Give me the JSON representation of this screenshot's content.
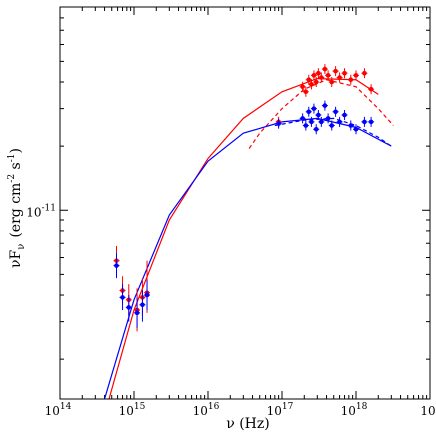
{
  "chart_data": {
    "type": "scatter",
    "xscale": "log",
    "yscale": "log",
    "xlim": [
      100000000000000.0,
      1e+19
    ],
    "ylim": [
      1.3e-12,
      9e-11
    ],
    "x_ticks": [
      {
        "value": 100000000000000.0,
        "label": "10",
        "exp": "14"
      },
      {
        "value": 1000000000000000.0,
        "label": "10",
        "exp": "15"
      },
      {
        "value": 1e+16,
        "label": "10",
        "exp": "16"
      },
      {
        "value": 1e+17,
        "label": "10",
        "exp": "17"
      },
      {
        "value": 1e+18,
        "label": "10",
        "exp": "18"
      },
      {
        "value": 1e+19,
        "label": "10",
        "exp": ""
      }
    ],
    "y_ticks": [
      {
        "value": 1e-11,
        "label": "10",
        "exp": "-11"
      }
    ],
    "xlabel": "ν  (Hz)",
    "ylabel_main": "νF",
    "ylabel_sub": "ν",
    "ylabel_units": "(erg cm",
    "ylabel_units_exp1": "-2",
    "ylabel_units_mid": " s",
    "ylabel_units_exp2": "-1",
    "ylabel_units_end": ")",
    "grid": false,
    "series": [
      {
        "color": "#ff0000",
        "points": [
          {
            "x": 580000000000000.0,
            "y": 5.8e-12,
            "yerr": [
              4.9e-12,
              6.8e-12
            ]
          },
          {
            "x": 700000000000000.0,
            "y": 4.2e-12,
            "yerr": [
              3.6e-12,
              4.9e-12
            ]
          },
          {
            "x": 850000000000000.0,
            "y": 3.8e-12,
            "yerr": [
              3.2e-12,
              4.5e-12
            ]
          },
          {
            "x": 1100000000000000.0,
            "y": 3.4e-12,
            "yerr": [
              2.7e-12,
              4.3e-12
            ]
          },
          {
            "x": 1300000000000000.0,
            "y": 3.9e-12,
            "yerr": [
              3.2e-12,
              4.8e-12
            ]
          },
          {
            "x": 1500000000000000.0,
            "y": 4.1e-12,
            "yerr": [
              3.3e-12,
              5.8e-12
            ]
          },
          {
            "x": 9e+16,
            "y": 2.6e-11
          },
          {
            "x": 1.9e+17,
            "y": 3.8e-11
          },
          {
            "x": 2.1e+17,
            "y": 3.6e-11
          },
          {
            "x": 2.3e+17,
            "y": 4.1e-11
          },
          {
            "x": 2.5e+17,
            "y": 3.9e-11
          },
          {
            "x": 2.7e+17,
            "y": 4.3e-11
          },
          {
            "x": 2.9e+17,
            "y": 4e-11
          },
          {
            "x": 3.1e+17,
            "y": 4.4e-11
          },
          {
            "x": 3.4e+17,
            "y": 4.2e-11
          },
          {
            "x": 3.8e+17,
            "y": 4.6e-11
          },
          {
            "x": 4.2e+17,
            "y": 4.3e-11
          },
          {
            "x": 4.7e+17,
            "y": 4e-11
          },
          {
            "x": 5.3e+17,
            "y": 4.5e-11
          },
          {
            "x": 6e+17,
            "y": 4.2e-11
          },
          {
            "x": 7e+17,
            "y": 4.4e-11
          },
          {
            "x": 8.5e+17,
            "y": 4.1e-11
          },
          {
            "x": 1e+18,
            "y": 4.3e-11
          },
          {
            "x": 1.3e+18,
            "y": 4.4e-11
          },
          {
            "x": 1.6e+18,
            "y": 3.7e-11
          }
        ],
        "model_solid": [
          [
            460000000000000.0,
            1.3e-12
          ],
          [
            1000000000000000.0,
            3.4e-12
          ],
          [
            3000000000000000.0,
            9e-12
          ],
          [
            1e+16,
            1.75e-11
          ],
          [
            3e+16,
            2.7e-11
          ],
          [
            1e+17,
            3.6e-11
          ],
          [
            3e+17,
            4.15e-11
          ],
          [
            1e+18,
            4.1e-11
          ],
          [
            2e+18,
            3.5e-11
          ]
        ],
        "model_dashed": [
          [
            3.6e+16,
            1.95e-11
          ],
          [
            5e+16,
            2.3e-11
          ],
          [
            1e+17,
            3e-11
          ],
          [
            2e+17,
            3.7e-11
          ],
          [
            4e+17,
            4.1e-11
          ],
          [
            1e+18,
            3.8e-11
          ],
          [
            2e+18,
            3e-11
          ],
          [
            3.2e+18,
            2.5e-11
          ]
        ]
      },
      {
        "color": "#0000ff",
        "points": [
          {
            "x": 580000000000000.0,
            "y": 5.5e-12,
            "yerr": [
              4.8e-12,
              6.3e-12
            ]
          },
          {
            "x": 700000000000000.0,
            "y": 3.9e-12,
            "yerr": [
              3.4e-12,
              4.5e-12
            ]
          },
          {
            "x": 850000000000000.0,
            "y": 3.5e-12,
            "yerr": [
              3e-12,
              4e-12
            ]
          },
          {
            "x": 1100000000000000.0,
            "y": 3.3e-12,
            "yerr": [
              2.8e-12,
              3.9e-12
            ]
          },
          {
            "x": 1300000000000000.0,
            "y": 3.6e-12,
            "yerr": [
              3e-12,
              4.2e-12
            ]
          },
          {
            "x": 1500000000000000.0,
            "y": 4e-12,
            "yerr": [
              3.4e-12,
              4.7e-12
            ]
          },
          {
            "x": 9e+16,
            "y": 2.55e-11
          },
          {
            "x": 1.9e+17,
            "y": 2.7e-11
          },
          {
            "x": 2.1e+17,
            "y": 2.5e-11
          },
          {
            "x": 2.3e+17,
            "y": 2.9e-11
          },
          {
            "x": 2.5e+17,
            "y": 2.6e-11
          },
          {
            "x": 2.7e+17,
            "y": 3e-11
          },
          {
            "x": 2.9e+17,
            "y": 2.4e-11
          },
          {
            "x": 3.1e+17,
            "y": 2.8e-11
          },
          {
            "x": 3.4e+17,
            "y": 2.6e-11
          },
          {
            "x": 3.8e+17,
            "y": 3.1e-11
          },
          {
            "x": 4.2e+17,
            "y": 2.7e-11
          },
          {
            "x": 4.7e+17,
            "y": 2.5e-11
          },
          {
            "x": 5.3e+17,
            "y": 2.9e-11
          },
          {
            "x": 6e+17,
            "y": 2.6e-11
          },
          {
            "x": 7e+17,
            "y": 2.8e-11
          },
          {
            "x": 8.5e+17,
            "y": 2.5e-11
          },
          {
            "x": 1e+18,
            "y": 2.4e-11
          },
          {
            "x": 1.3e+18,
            "y": 2.6e-11
          },
          {
            "x": 1.6e+18,
            "y": 2.6e-11
          }
        ],
        "model_solid": [
          [
            400000000000000.0,
            1.3e-12
          ],
          [
            1000000000000000.0,
            3.8e-12
          ],
          [
            3000000000000000.0,
            9.5e-12
          ],
          [
            1e+16,
            1.7e-11
          ],
          [
            3e+16,
            2.3e-11
          ],
          [
            1e+17,
            2.6e-11
          ],
          [
            3e+17,
            2.7e-11
          ],
          [
            1e+18,
            2.45e-11
          ],
          [
            3e+18,
            2e-11
          ]
        ],
        "model_dashed": [
          [
            8e+16,
            2.5e-11
          ],
          [
            2e+17,
            2.65e-11
          ],
          [
            5e+17,
            2.7e-11
          ],
          [
            1e+18,
            2.5e-11
          ],
          [
            2e+18,
            2.2e-11
          ],
          [
            3e+18,
            2e-11
          ]
        ]
      }
    ]
  }
}
